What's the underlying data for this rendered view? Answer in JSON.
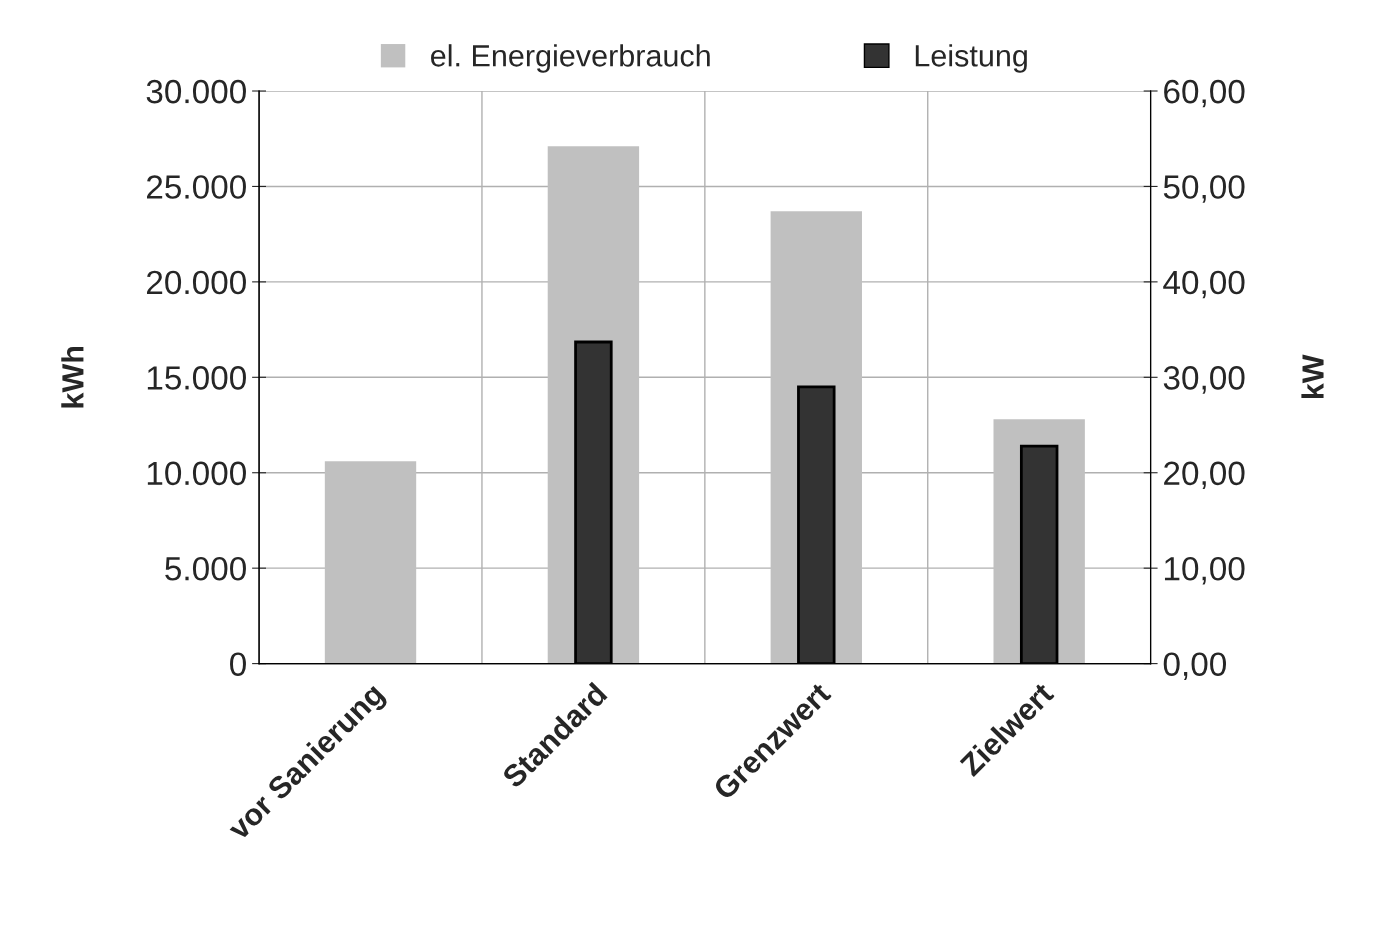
{
  "chart_data": {
    "type": "bar",
    "categories": [
      "vor Sanierung",
      "Standard",
      "Grenzwert",
      "Zielwert"
    ],
    "series": [
      {
        "name": "el. Energieverbrauch",
        "color": "#c0c0c0",
        "values": [
          10600,
          27100,
          23700,
          12800
        ]
      },
      {
        "name": "Leistung",
        "color": "#333333",
        "values": [
          null,
          33.7,
          29.0,
          22.8
        ],
        "axis": "y2"
      }
    ],
    "ylabel": "kWh",
    "y2label": "kW",
    "ylim": [
      0,
      30000
    ],
    "yticks": [
      {
        "value": 0,
        "label": "0"
      },
      {
        "value": 5000,
        "label": "5.000"
      },
      {
        "value": 10000,
        "label": "10.000"
      },
      {
        "value": 15000,
        "label": "15.000"
      },
      {
        "value": 20000,
        "label": "20.000"
      },
      {
        "value": 25000,
        "label": "25.000"
      },
      {
        "value": 30000,
        "label": "30.000"
      }
    ],
    "y2lim": [
      0,
      60
    ],
    "y2ticks": [
      {
        "value": 0,
        "label": "0,00"
      },
      {
        "value": 10,
        "label": "10,00"
      },
      {
        "value": 20,
        "label": "20,00"
      },
      {
        "value": 30,
        "label": "30,00"
      },
      {
        "value": 40,
        "label": "40,00"
      },
      {
        "value": 50,
        "label": "50,00"
      },
      {
        "value": 60,
        "label": "60,00"
      }
    ],
    "grid": true,
    "legend": "top"
  }
}
